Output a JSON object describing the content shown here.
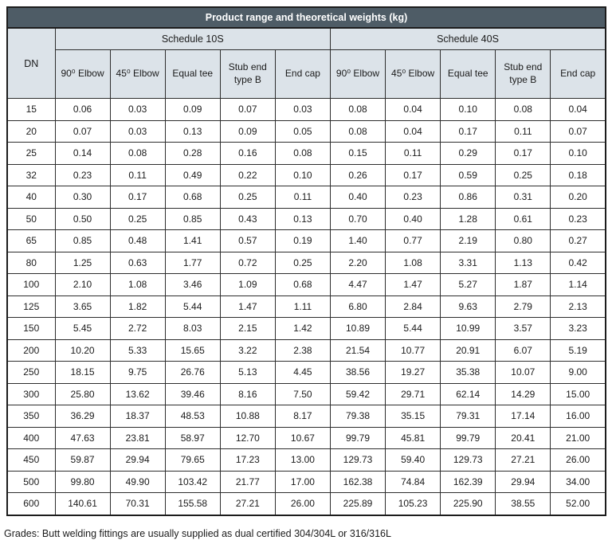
{
  "title": "Product range and theoretical weights (kg)",
  "colors": {
    "title_bg": "#4e5c66",
    "title_text": "#ffffff",
    "header_bg": "#dce3e9",
    "border": "#2d2d2d",
    "cell_bg": "#ffffff"
  },
  "table": {
    "dn_label": "DN",
    "groups": [
      {
        "label": "Schedule 10S"
      },
      {
        "label": "Schedule 40S"
      }
    ],
    "columns": [
      "90⁰ Elbow",
      "45⁰ Elbow",
      "Equal tee",
      "Stub end type B",
      "End cap"
    ],
    "rows": [
      {
        "dn": "15",
        "values": [
          "0.06",
          "0.03",
          "0.09",
          "0.07",
          "0.03",
          "0.08",
          "0.04",
          "0.10",
          "0.08",
          "0.04"
        ]
      },
      {
        "dn": "20",
        "values": [
          "0.07",
          "0.03",
          "0.13",
          "0.09",
          "0.05",
          "0.08",
          "0.04",
          "0.17",
          "0.11",
          "0.07"
        ]
      },
      {
        "dn": "25",
        "values": [
          "0.14",
          "0.08",
          "0.28",
          "0.16",
          "0.08",
          "0.15",
          "0.11",
          "0.29",
          "0.17",
          "0.10"
        ]
      },
      {
        "dn": "32",
        "values": [
          "0.23",
          "0.11",
          "0.49",
          "0.22",
          "0.10",
          "0.26",
          "0.17",
          "0.59",
          "0.25",
          "0.18"
        ]
      },
      {
        "dn": "40",
        "values": [
          "0.30",
          "0.17",
          "0.68",
          "0.25",
          "0.11",
          "0.40",
          "0.23",
          "0.86",
          "0.31",
          "0.20"
        ]
      },
      {
        "dn": "50",
        "values": [
          "0.50",
          "0.25",
          "0.85",
          "0.43",
          "0.13",
          "0.70",
          "0.40",
          "1.28",
          "0.61",
          "0.23"
        ]
      },
      {
        "dn": "65",
        "values": [
          "0.85",
          "0.48",
          "1.41",
          "0.57",
          "0.19",
          "1.40",
          "0.77",
          "2.19",
          "0.80",
          "0.27"
        ]
      },
      {
        "dn": "80",
        "values": [
          "1.25",
          "0.63",
          "1.77",
          "0.72",
          "0.25",
          "2.20",
          "1.08",
          "3.31",
          "1.13",
          "0.42"
        ]
      },
      {
        "dn": "100",
        "values": [
          "2.10",
          "1.08",
          "3.46",
          "1.09",
          "0.68",
          "4.47",
          "1.47",
          "5.27",
          "1.87",
          "1.14"
        ]
      },
      {
        "dn": "125",
        "values": [
          "3.65",
          "1.82",
          "5.44",
          "1.47",
          "1.11",
          "6.80",
          "2.84",
          "9.63",
          "2.79",
          "2.13"
        ]
      },
      {
        "dn": "150",
        "values": [
          "5.45",
          "2.72",
          "8.03",
          "2.15",
          "1.42",
          "10.89",
          "5.44",
          "10.99",
          "3.57",
          "3.23"
        ]
      },
      {
        "dn": "200",
        "values": [
          "10.20",
          "5.33",
          "15.65",
          "3.22",
          "2.38",
          "21.54",
          "10.77",
          "20.91",
          "6.07",
          "5.19"
        ]
      },
      {
        "dn": "250",
        "values": [
          "18.15",
          "9.75",
          "26.76",
          "5.13",
          "4.45",
          "38.56",
          "19.27",
          "35.38",
          "10.07",
          "9.00"
        ]
      },
      {
        "dn": "300",
        "values": [
          "25.80",
          "13.62",
          "39.46",
          "8.16",
          "7.50",
          "59.42",
          "29.71",
          "62.14",
          "14.29",
          "15.00"
        ]
      },
      {
        "dn": "350",
        "values": [
          "36.29",
          "18.37",
          "48.53",
          "10.88",
          "8.17",
          "79.38",
          "35.15",
          "79.31",
          "17.14",
          "16.00"
        ]
      },
      {
        "dn": "400",
        "values": [
          "47.63",
          "23.81",
          "58.97",
          "12.70",
          "10.67",
          "99.79",
          "45.81",
          "99.79",
          "20.41",
          "21.00"
        ]
      },
      {
        "dn": "450",
        "values": [
          "59.87",
          "29.94",
          "79.65",
          "17.23",
          "13.00",
          "129.73",
          "59.40",
          "129.73",
          "27.21",
          "26.00"
        ]
      },
      {
        "dn": "500",
        "values": [
          "99.80",
          "49.90",
          "103.42",
          "21.77",
          "17.00",
          "162.38",
          "74.84",
          "162.39",
          "29.94",
          "34.00"
        ]
      },
      {
        "dn": "600",
        "values": [
          "140.61",
          "70.31",
          "155.58",
          "27.21",
          "26.00",
          "225.89",
          "105.23",
          "225.90",
          "38.55",
          "52.00"
        ]
      }
    ]
  },
  "footer_note": "Grades: Butt welding fittings are usually supplied as dual certified 304/304L or 316/316L"
}
